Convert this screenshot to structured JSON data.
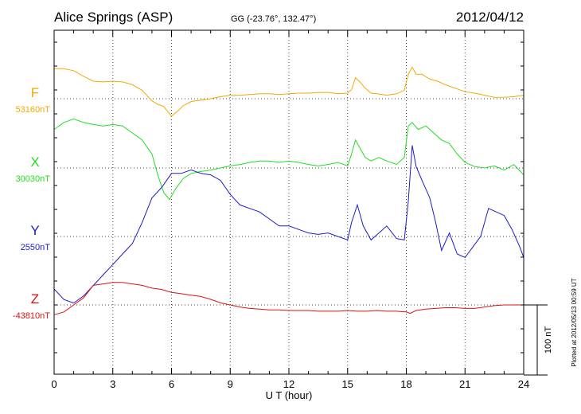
{
  "header": {
    "title": "Alice Springs (ASP)",
    "coords": "GG (-23.76°, 132.47°)",
    "date": "2012/04/12"
  },
  "plotted_note": "Plotted at 2012/05/13 00:59 UT",
  "scale_label": "100 nT",
  "chart_data": {
    "type": "line",
    "xlabel": "U T (hour)",
    "xlim": [
      0,
      24
    ],
    "xticks": [
      0,
      3,
      6,
      9,
      12,
      15,
      18,
      21,
      24
    ],
    "xtick_labels": [
      "0",
      "3",
      "6",
      "9",
      "12",
      "15",
      "18",
      "21",
      "24"
    ],
    "units": "nT",
    "scale_bar_nT": 100,
    "grid": true,
    "series": [
      {
        "name": "F",
        "baseline_label": "53160nT",
        "baseline_nT": 53160,
        "color": "#f5a800",
        "x": [
          0,
          0.5,
          1,
          1.5,
          2,
          2.5,
          3,
          3.5,
          4,
          4.5,
          5,
          5.3,
          5.6,
          5.8,
          6,
          6.3,
          6.6,
          7,
          7.5,
          8,
          8.5,
          9,
          9.5,
          10,
          10.5,
          11,
          11.5,
          12,
          12.5,
          13,
          13.5,
          14,
          14.5,
          15,
          15.2,
          15.4,
          15.6,
          15.9,
          16.2,
          16.5,
          17,
          17.5,
          17.9,
          18.1,
          18.3,
          18.5,
          18.8,
          19.2,
          19.6,
          20,
          20.5,
          21,
          21.5,
          22,
          22.5,
          23,
          23.5,
          24
        ],
        "values": [
          43,
          43,
          40,
          32,
          25,
          24,
          25,
          24,
          20,
          12,
          -3,
          -8,
          -11,
          -18,
          -25,
          -18,
          -10,
          -4,
          -2,
          0,
          3,
          5,
          5,
          6,
          7,
          7,
          6,
          7,
          8,
          8,
          9,
          9,
          7,
          8,
          13,
          30,
          25,
          15,
          8,
          7,
          5,
          7,
          12,
          35,
          45,
          35,
          35,
          28,
          25,
          20,
          15,
          10,
          8,
          5,
          2,
          2,
          3,
          5
        ]
      },
      {
        "name": "X",
        "baseline_label": "30030nT",
        "baseline_nT": 30030,
        "color": "#22dd22",
        "x": [
          0,
          0.5,
          1,
          1.5,
          2,
          2.5,
          3,
          3.5,
          4,
          4.5,
          5,
          5.3,
          5.6,
          5.9,
          6.2,
          6.6,
          7,
          7.5,
          8,
          8.5,
          9,
          9.5,
          10,
          10.5,
          11,
          11.5,
          12,
          12.5,
          13,
          13.5,
          14,
          14.5,
          15,
          15.2,
          15.4,
          15.6,
          15.9,
          16.2,
          16.6,
          17,
          17.5,
          17.9,
          18.1,
          18.3,
          18.6,
          19,
          19.4,
          19.8,
          20.2,
          20.6,
          21,
          21.5,
          22,
          22.5,
          23,
          23.5,
          24
        ],
        "values": [
          55,
          65,
          70,
          65,
          62,
          60,
          62,
          60,
          50,
          40,
          20,
          -10,
          -35,
          -45,
          -30,
          -15,
          -8,
          -5,
          -3,
          0,
          3,
          5,
          8,
          10,
          10,
          8,
          10,
          8,
          5,
          3,
          5,
          8,
          3,
          20,
          40,
          30,
          15,
          10,
          15,
          10,
          5,
          15,
          60,
          65,
          55,
          60,
          50,
          40,
          35,
          20,
          8,
          2,
          0,
          3,
          -3,
          5,
          -10
        ]
      },
      {
        "name": "Y",
        "baseline_label": "2550nT",
        "baseline_nT": 2550,
        "color": "#1a1acc",
        "x": [
          0,
          0.5,
          1,
          1.5,
          2,
          2.5,
          3,
          3.5,
          4,
          4.5,
          5,
          5.5,
          6,
          6.5,
          7,
          7.5,
          8,
          8.5,
          9,
          9.5,
          10,
          10.5,
          11,
          11.5,
          12,
          12.5,
          13,
          13.5,
          14,
          14.5,
          15,
          15.2,
          15.5,
          15.8,
          16.2,
          16.6,
          17,
          17.5,
          17.9,
          18.1,
          18.3,
          18.5,
          18.8,
          19.2,
          19.5,
          19.8,
          20.2,
          20.6,
          21,
          21.4,
          21.8,
          22.2,
          22.6,
          23,
          23.4,
          23.8,
          24
        ],
        "values": [
          -75,
          -90,
          -95,
          -85,
          -70,
          -55,
          -40,
          -25,
          -10,
          20,
          55,
          70,
          90,
          90,
          95,
          90,
          88,
          80,
          60,
          45,
          40,
          35,
          25,
          15,
          15,
          10,
          5,
          3,
          5,
          0,
          -5,
          20,
          45,
          15,
          -5,
          5,
          15,
          -3,
          -5,
          50,
          130,
          100,
          80,
          55,
          20,
          -20,
          5,
          -25,
          -30,
          -15,
          0,
          40,
          35,
          30,
          10,
          -15,
          -30
        ]
      },
      {
        "name": "Z",
        "baseline_label": "-43810nT",
        "baseline_nT": -43810,
        "color": "#dd1111",
        "x": [
          0,
          0.5,
          1,
          1.5,
          2,
          2.5,
          3,
          3.5,
          4,
          4.5,
          5,
          5.5,
          6,
          6.5,
          7,
          7.5,
          8,
          8.5,
          9,
          9.5,
          10,
          10.5,
          11,
          11.5,
          12,
          12.5,
          13,
          13.5,
          14,
          14.5,
          15,
          15.5,
          16,
          16.5,
          17,
          17.5,
          18,
          18.2,
          18.5,
          19,
          19.5,
          20,
          20.5,
          21,
          21.5,
          22,
          22.5,
          23,
          23.5,
          24
        ],
        "values": [
          -14,
          -10,
          0,
          10,
          28,
          30,
          32,
          32,
          30,
          28,
          24,
          22,
          18,
          16,
          14,
          12,
          8,
          3,
          0,
          -3,
          -5,
          -6,
          -7,
          -7,
          -8,
          -8,
          -8,
          -9,
          -9,
          -9,
          -8,
          -9,
          -9,
          -8,
          -9,
          -9,
          -10,
          -12,
          -8,
          -6,
          -5,
          -4,
          -4,
          -5,
          -5,
          -3,
          -1,
          0,
          0,
          0
        ]
      }
    ]
  }
}
